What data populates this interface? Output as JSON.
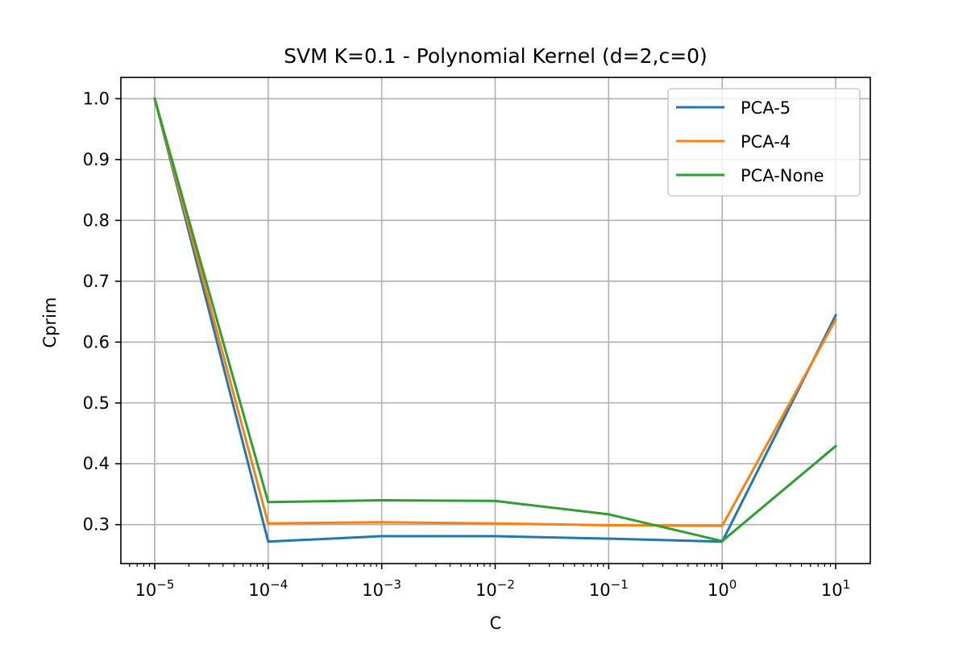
{
  "chart_data": {
    "type": "line",
    "title": "SVM K=0.1 - Polynomial Kernel (d=2,c=0)",
    "xlabel": "C",
    "ylabel": "Cprim",
    "xscale": "log",
    "x": [
      1e-05,
      0.0001,
      0.001,
      0.01,
      0.1,
      1,
      10
    ],
    "xtick_labels": [
      {
        "base": "10",
        "exp": "−5"
      },
      {
        "base": "10",
        "exp": "−4"
      },
      {
        "base": "10",
        "exp": "−3"
      },
      {
        "base": "10",
        "exp": "−2"
      },
      {
        "base": "10",
        "exp": "−1"
      },
      {
        "base": "10",
        "exp": "0"
      },
      {
        "base": "10",
        "exp": "1"
      }
    ],
    "yticks": [
      "0.3",
      "0.4",
      "0.5",
      "0.6",
      "0.7",
      "0.8",
      "0.9",
      "1.0"
    ],
    "ylim": [
      0.236,
      1.035
    ],
    "grid": true,
    "legend_position": "top-right",
    "series": [
      {
        "name": "PCA-5",
        "color": "#1f77b4",
        "values": [
          1.0,
          0.272,
          0.281,
          0.281,
          0.277,
          0.272,
          0.644
        ]
      },
      {
        "name": "PCA-4",
        "color": "#ff7f0e",
        "values": [
          1.0,
          0.302,
          0.304,
          0.302,
          0.299,
          0.298,
          0.637
        ]
      },
      {
        "name": "PCA-None",
        "color": "#2ca02c",
        "values": [
          1.0,
          0.337,
          0.34,
          0.339,
          0.317,
          0.273,
          0.429
        ]
      }
    ]
  }
}
